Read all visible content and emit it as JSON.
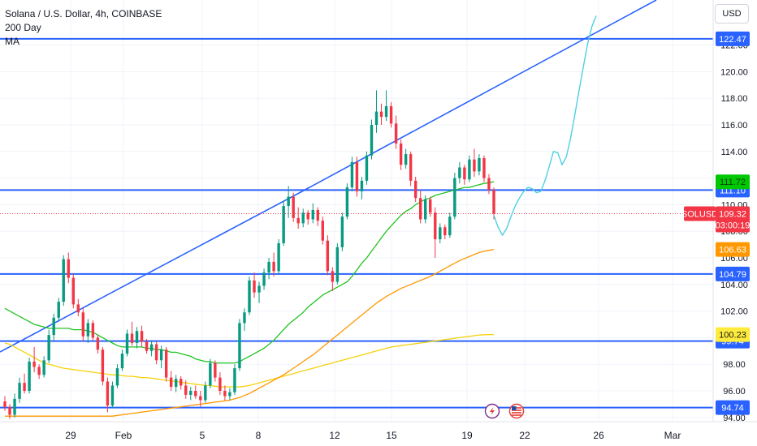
{
  "legend": {
    "title": "Solana / U.S. Dollar, 4h, COINBASE",
    "line2": "200 Day",
    "line3": "MA"
  },
  "currency_button": "USD",
  "chart_data": {
    "type": "candlestick",
    "symbol": "SOLUSD",
    "ylim": [
      94.0,
      124.0
    ],
    "y_ticks": [
      "94.00",
      "96.00",
      "98.00",
      "100.00",
      "102.00",
      "104.00",
      "106.00",
      "108.00",
      "110.00",
      "112.00",
      "114.00",
      "116.00",
      "118.00",
      "120.00",
      "122.00"
    ],
    "x_ticks": [
      "29",
      "Feb",
      "5",
      "8",
      "12",
      "15",
      "19",
      "22",
      "26",
      "Mar"
    ],
    "horizontal_levels": [
      {
        "label": "122.47",
        "value": 122.47
      },
      {
        "label": "111.10",
        "value": 111.1
      },
      {
        "label": "104.79",
        "value": 104.79
      },
      {
        "label": "99.74",
        "value": 99.74
      },
      {
        "label": "94.74",
        "value": 94.74
      }
    ],
    "price_tags": {
      "ma_green": {
        "label": "111.72",
        "value": 111.72,
        "color": "#00c805"
      },
      "current_price": {
        "symbol": "SOLUSD",
        "label": "109.32",
        "countdown": "03:00:19",
        "value": 109.32,
        "color": "#f23645"
      },
      "ma_orange": {
        "label": "106.63",
        "value": 106.63,
        "color": "#ff9800"
      },
      "ma_yellow": {
        "label": "100.23",
        "value": 100.23,
        "color": "#ffeb3b"
      }
    },
    "colors": {
      "up": "#089981",
      "down": "#f23645",
      "level_line": "#2962ff",
      "projection": "#4dd0e1",
      "grid": "#f0f3fa"
    },
    "candles": [
      [
        95.2,
        95.6,
        94.5,
        94.8
      ],
      [
        94.8,
        95.0,
        93.9,
        94.2
      ],
      [
        94.2,
        95.8,
        94.0,
        95.4
      ],
      [
        95.4,
        97.0,
        95.1,
        96.6
      ],
      [
        96.6,
        97.3,
        95.8,
        96.0
      ],
      [
        96.0,
        98.5,
        95.8,
        98.2
      ],
      [
        98.2,
        99.3,
        97.4,
        97.8
      ],
      [
        97.8,
        98.0,
        96.9,
        97.2
      ],
      [
        97.2,
        98.6,
        97.0,
        98.3
      ],
      [
        98.3,
        100.6,
        98.1,
        100.2
      ],
      [
        100.2,
        101.8,
        99.8,
        101.5
      ],
      [
        101.5,
        103.0,
        101.2,
        102.7
      ],
      [
        102.7,
        106.2,
        102.4,
        105.9
      ],
      [
        105.9,
        106.4,
        104.1,
        104.5
      ],
      [
        104.5,
        104.8,
        102.2,
        102.5
      ],
      [
        102.5,
        102.9,
        101.6,
        101.9
      ],
      [
        101.9,
        102.2,
        99.7,
        100.1
      ],
      [
        100.1,
        101.4,
        99.6,
        101.1
      ],
      [
        101.1,
        101.3,
        99.8,
        100.0
      ],
      [
        100.0,
        100.2,
        98.8,
        99.1
      ],
      [
        99.1,
        99.3,
        96.4,
        96.7
      ],
      [
        96.7,
        97.0,
        94.4,
        94.9
      ],
      [
        94.9,
        96.7,
        94.7,
        96.4
      ],
      [
        96.4,
        98.0,
        96.2,
        97.7
      ],
      [
        97.7,
        99.1,
        97.5,
        98.8
      ],
      [
        98.8,
        100.6,
        98.6,
        100.3
      ],
      [
        100.3,
        101.2,
        99.4,
        99.6
      ],
      [
        99.6,
        100.8,
        99.2,
        100.5
      ],
      [
        100.5,
        100.9,
        99.3,
        99.7
      ],
      [
        99.7,
        99.9,
        98.8,
        99.0
      ],
      [
        99.0,
        99.8,
        98.6,
        99.5
      ],
      [
        99.5,
        99.7,
        98.0,
        98.3
      ],
      [
        98.3,
        99.4,
        97.7,
        99.1
      ],
      [
        99.1,
        99.3,
        96.7,
        97.0
      ],
      [
        97.0,
        97.5,
        96.0,
        96.3
      ],
      [
        96.3,
        97.2,
        95.9,
        96.9
      ],
      [
        96.9,
        97.1,
        96.1,
        96.4
      ],
      [
        96.4,
        96.8,
        95.4,
        95.7
      ],
      [
        95.7,
        96.3,
        95.3,
        96.0
      ],
      [
        96.0,
        96.4,
        95.4,
        95.6
      ],
      [
        95.6,
        96.0,
        94.8,
        95.3
      ],
      [
        95.3,
        96.7,
        95.1,
        96.4
      ],
      [
        96.4,
        98.4,
        96.2,
        98.1
      ],
      [
        98.1,
        98.3,
        96.7,
        97.0
      ],
      [
        97.0,
        97.4,
        95.7,
        96.0
      ],
      [
        96.0,
        96.4,
        95.3,
        95.6
      ],
      [
        95.6,
        96.2,
        95.3,
        95.9
      ],
      [
        95.9,
        98.0,
        95.7,
        97.7
      ],
      [
        97.7,
        101.4,
        97.5,
        101.1
      ],
      [
        101.1,
        102.2,
        100.5,
        101.9
      ],
      [
        101.9,
        104.6,
        101.7,
        104.3
      ],
      [
        104.3,
        104.9,
        103.0,
        103.4
      ],
      [
        103.4,
        104.2,
        102.6,
        103.9
      ],
      [
        103.9,
        105.2,
        103.6,
        104.9
      ],
      [
        104.9,
        106.0,
        104.4,
        105.7
      ],
      [
        105.7,
        106.4,
        104.6,
        105.0
      ],
      [
        105.0,
        107.4,
        104.8,
        107.1
      ],
      [
        107.1,
        110.3,
        106.9,
        109.9
      ],
      [
        109.9,
        111.4,
        109.0,
        110.6
      ],
      [
        110.6,
        110.9,
        108.7,
        109.0
      ],
      [
        109.0,
        109.8,
        108.2,
        108.6
      ],
      [
        108.6,
        109.7,
        108.3,
        109.4
      ],
      [
        109.4,
        109.6,
        108.5,
        108.9
      ],
      [
        108.9,
        110.1,
        108.6,
        109.6
      ],
      [
        109.6,
        109.8,
        108.4,
        108.8
      ],
      [
        108.8,
        109.1,
        107.0,
        107.3
      ],
      [
        107.3,
        107.7,
        104.7,
        105.0
      ],
      [
        105.0,
        105.3,
        103.5,
        104.2
      ],
      [
        104.2,
        107.1,
        104.0,
        106.8
      ],
      [
        106.8,
        109.4,
        106.5,
        109.1
      ],
      [
        109.1,
        111.6,
        108.9,
        111.3
      ],
      [
        111.3,
        113.6,
        111.0,
        113.2
      ],
      [
        113.2,
        113.6,
        110.6,
        111.0
      ],
      [
        111.0,
        112.1,
        110.4,
        111.8
      ],
      [
        111.8,
        114.0,
        111.5,
        113.7
      ],
      [
        113.7,
        116.4,
        113.4,
        116.0
      ],
      [
        116.0,
        118.6,
        115.4,
        117.0
      ],
      [
        117.0,
        117.6,
        116.0,
        116.6
      ],
      [
        116.6,
        118.6,
        116.3,
        117.4
      ],
      [
        117.4,
        117.7,
        115.8,
        116.1
      ],
      [
        116.1,
        116.7,
        114.2,
        114.6
      ],
      [
        114.6,
        114.9,
        112.6,
        113.0
      ],
      [
        113.0,
        114.2,
        112.7,
        113.8
      ],
      [
        113.8,
        114.0,
        111.4,
        111.8
      ],
      [
        111.8,
        112.1,
        110.2,
        110.5
      ],
      [
        110.5,
        111.1,
        108.6,
        108.9
      ],
      [
        108.9,
        110.7,
        108.6,
        110.4
      ],
      [
        110.4,
        110.6,
        109.1,
        109.4
      ],
      [
        109.4,
        109.8,
        106.0,
        107.4
      ],
      [
        107.4,
        108.6,
        107.1,
        108.3
      ],
      [
        108.3,
        108.5,
        107.4,
        107.7
      ],
      [
        107.7,
        109.4,
        107.5,
        109.1
      ],
      [
        109.1,
        112.4,
        108.9,
        112.0
      ],
      [
        112.0,
        113.2,
        111.6,
        112.8
      ],
      [
        112.8,
        113.0,
        111.5,
        111.9
      ],
      [
        111.9,
        113.7,
        111.7,
        113.4
      ],
      [
        113.4,
        114.2,
        112.1,
        112.5
      ],
      [
        112.5,
        113.8,
        112.2,
        113.5
      ],
      [
        113.5,
        113.7,
        111.7,
        112.0
      ],
      [
        112.0,
        112.3,
        110.8,
        111.1
      ],
      [
        111.1,
        111.3,
        108.9,
        109.32
      ]
    ],
    "ma_green": [
      102.2,
      102.0,
      101.8,
      101.6,
      101.4,
      101.2,
      101.0,
      100.9,
      100.8,
      100.7,
      100.7,
      100.7,
      100.7,
      100.7,
      100.6,
      100.6,
      100.6,
      100.5,
      100.4,
      100.2,
      100.0,
      99.8,
      99.6,
      99.4,
      99.3,
      99.3,
      99.3,
      99.3,
      99.3,
      99.2,
      99.2,
      99.1,
      99.1,
      99.0,
      98.9,
      98.9,
      98.8,
      98.7,
      98.6,
      98.4,
      98.3,
      98.2,
      98.2,
      98.1,
      98.1,
      98.1,
      98.1,
      98.1,
      98.2,
      98.4,
      98.6,
      98.8,
      99.0,
      99.2,
      99.5,
      99.8,
      100.2,
      100.6,
      101.0,
      101.3,
      101.6,
      101.9,
      102.3,
      102.6,
      102.9,
      103.2,
      103.4,
      103.6,
      103.8,
      104.0,
      104.2,
      104.6,
      105.1,
      105.6,
      106.0,
      106.5,
      107.0,
      107.5,
      108.0,
      108.4,
      108.8,
      109.2,
      109.5,
      109.7,
      110.0,
      110.2,
      110.4,
      110.5,
      110.7,
      110.8,
      110.9,
      111.0,
      111.1,
      111.2,
      111.3,
      111.3,
      111.4,
      111.5,
      111.6,
      111.65,
      111.72
    ],
    "ma_orange": [
      94.1,
      94.1,
      94.1,
      94.1,
      94.1,
      94.1,
      94.1,
      94.1,
      94.1,
      94.1,
      94.1,
      94.1,
      94.1,
      94.1,
      94.1,
      94.1,
      94.1,
      94.1,
      94.1,
      94.1,
      94.1,
      94.1,
      94.1,
      94.15,
      94.2,
      94.25,
      94.3,
      94.35,
      94.4,
      94.45,
      94.5,
      94.55,
      94.6,
      94.65,
      94.7,
      94.75,
      94.8,
      94.85,
      94.9,
      94.95,
      95.0,
      95.05,
      95.1,
      95.15,
      95.2,
      95.25,
      95.3,
      95.4,
      95.5,
      95.65,
      95.8,
      96.0,
      96.2,
      96.4,
      96.6,
      96.8,
      97.0,
      97.2,
      97.45,
      97.7,
      97.95,
      98.2,
      98.45,
      98.7,
      99.0,
      99.3,
      99.6,
      99.9,
      100.2,
      100.5,
      100.8,
      101.1,
      101.4,
      101.7,
      102.0,
      102.3,
      102.6,
      102.85,
      103.1,
      103.3,
      103.5,
      103.7,
      103.85,
      104.0,
      104.15,
      104.3,
      104.45,
      104.6,
      104.8,
      105.0,
      105.2,
      105.4,
      105.6,
      105.8,
      105.95,
      106.1,
      106.25,
      106.4,
      106.5,
      106.57,
      106.63
    ],
    "ma_yellow": [
      99.6,
      99.5,
      99.3,
      99.1,
      98.9,
      98.7,
      98.5,
      98.3,
      98.1,
      98.0,
      97.9,
      97.8,
      97.7,
      97.65,
      97.6,
      97.55,
      97.5,
      97.45,
      97.4,
      97.35,
      97.3,
      97.25,
      97.2,
      97.2,
      97.15,
      97.1,
      97.1,
      97.05,
      97.0,
      97.0,
      96.95,
      96.9,
      96.85,
      96.8,
      96.75,
      96.7,
      96.65,
      96.6,
      96.55,
      96.5,
      96.45,
      96.4,
      96.4,
      96.35,
      96.3,
      96.3,
      96.3,
      96.3,
      96.3,
      96.35,
      96.4,
      96.5,
      96.6,
      96.7,
      96.8,
      96.9,
      97.0,
      97.1,
      97.2,
      97.3,
      97.4,
      97.5,
      97.6,
      97.7,
      97.8,
      97.9,
      98.0,
      98.1,
      98.2,
      98.3,
      98.4,
      98.5,
      98.6,
      98.7,
      98.8,
      98.9,
      99.0,
      99.1,
      99.2,
      99.3,
      99.35,
      99.4,
      99.45,
      99.5,
      99.55,
      99.6,
      99.65,
      99.7,
      99.75,
      99.8,
      99.85,
      99.9,
      99.95,
      100.0,
      100.05,
      100.1,
      100.15,
      100.2,
      100.22,
      100.23,
      100.23
    ],
    "projection": [
      109.2,
      108.3,
      107.7,
      108.2,
      109.1,
      109.9,
      110.5,
      111.0,
      111.3,
      111.2,
      110.9,
      111.0,
      111.8,
      112.9,
      114.0,
      113.9,
      113.0,
      113.6,
      115.0,
      116.8,
      118.6,
      120.4,
      122.1,
      123.4,
      124.2
    ],
    "trendlines": [
      {
        "from": [
          0,
          99.7
        ],
        "to": [
          372,
          111.1
        ]
      },
      {
        "from": [
          372,
          111.1
        ],
        "to": [
          810,
          124.0
        ]
      }
    ],
    "event_icons": [
      "lightning-icon",
      "us-flag-icon"
    ]
  }
}
